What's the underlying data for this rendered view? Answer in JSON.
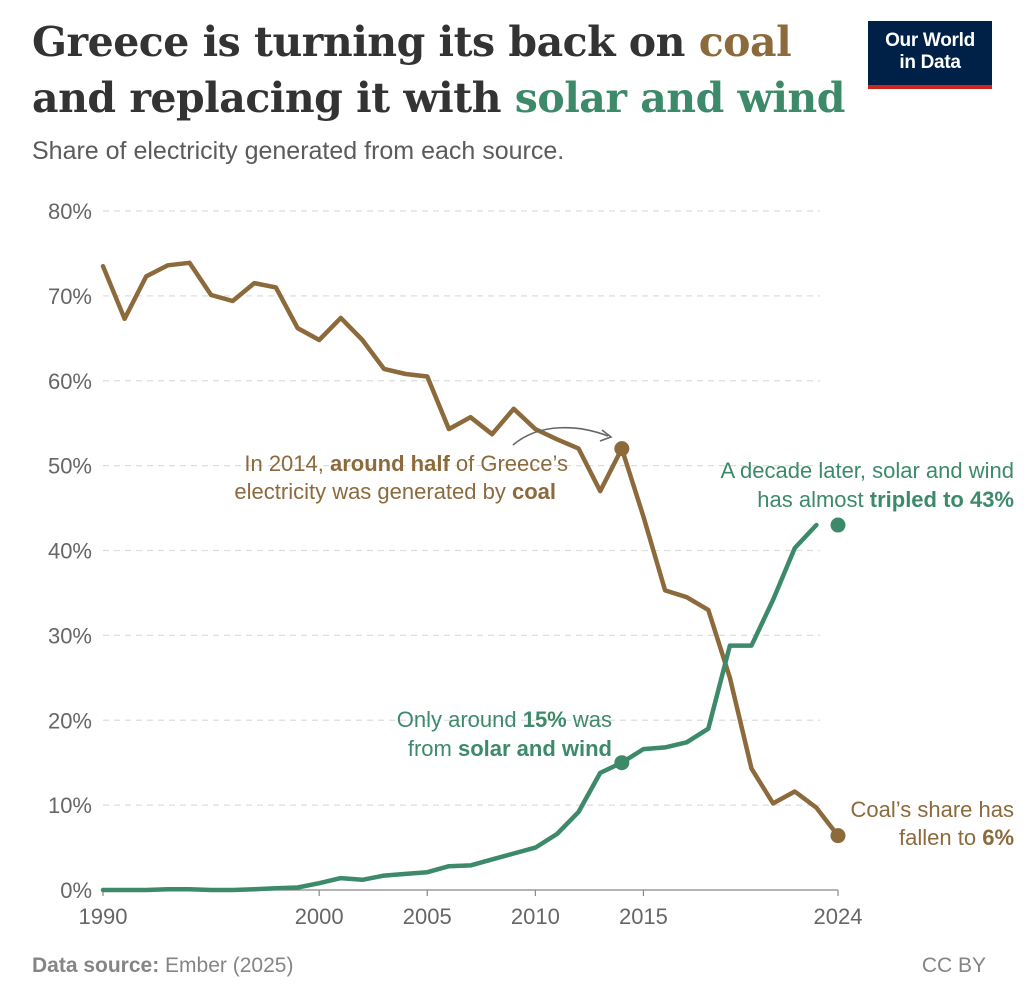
{
  "header": {
    "title_line1_pre": "Greece is turning its back on ",
    "title_line1_hl": "coal",
    "title_line2_pre": "and replacing it with ",
    "title_line2_hl": "solar and wind",
    "subtitle": "Share of electricity generated from each source.",
    "logo_line1": "Our World",
    "logo_line2": "in Data"
  },
  "colors": {
    "coal": "#8c6a3c",
    "solar_wind": "#3d8a6a",
    "title_text": "#333333",
    "grid": "#dddddd",
    "axis_text": "#666666",
    "logo_bg": "#002147",
    "logo_accent": "#ce261e"
  },
  "chart_data": {
    "type": "line",
    "xlim": [
      1990,
      2024
    ],
    "ylim": [
      0,
      80
    ],
    "y_ticks": [
      0,
      10,
      20,
      30,
      40,
      50,
      60,
      70,
      80
    ],
    "y_tick_labels": [
      "0%",
      "10%",
      "20%",
      "30%",
      "40%",
      "50%",
      "60%",
      "70%",
      "80%"
    ],
    "x_ticks": [
      1990,
      2000,
      2005,
      2010,
      2015,
      2024
    ],
    "x_tick_labels": [
      "1990",
      "2000",
      "2005",
      "2010",
      "2015",
      "2024"
    ],
    "grid": "horizontal-dashed",
    "series": [
      {
        "key": "coal",
        "x": [
          1990,
          1991,
          1992,
          1993,
          1994,
          1995,
          1996,
          1997,
          1998,
          1999,
          2000,
          2001,
          2002,
          2003,
          2004,
          2005,
          2006,
          2007,
          2008,
          2009,
          2010,
          2011,
          2012,
          2013,
          2014,
          2015,
          2016,
          2017,
          2018,
          2019,
          2020,
          2021,
          2022,
          2023,
          2024
        ],
        "values": [
          73.5,
          67.3,
          72.3,
          73.6,
          73.9,
          70.1,
          69.4,
          71.5,
          71.0,
          66.2,
          64.8,
          67.4,
          64.8,
          61.4,
          60.8,
          60.5,
          54.3,
          55.7,
          53.7,
          56.7,
          54.3,
          53.1,
          52.0,
          47.0,
          52.0,
          44.0,
          35.3,
          34.5,
          33.0,
          25.0,
          14.3,
          10.2,
          11.6,
          9.7,
          6.4
        ]
      },
      {
        "key": "solar_wind",
        "x": [
          1990,
          1991,
          1992,
          1993,
          1994,
          1995,
          1996,
          1997,
          1998,
          1999,
          2000,
          2001,
          2002,
          2003,
          2004,
          2005,
          2006,
          2007,
          2008,
          2009,
          2010,
          2011,
          2012,
          2013,
          2014,
          2015,
          2016,
          2017,
          2018,
          2019,
          2020,
          2021,
          2022,
          2023,
          2024
        ],
        "values": [
          0.0,
          0.0,
          0.0,
          0.1,
          0.1,
          0.0,
          0.0,
          0.1,
          0.2,
          0.3,
          0.8,
          1.4,
          1.2,
          1.7,
          1.9,
          2.1,
          2.8,
          2.9,
          3.6,
          4.3,
          5.0,
          6.6,
          9.2,
          13.8,
          15.0,
          16.6,
          16.8,
          17.4,
          19.0,
          28.8,
          28.8,
          34.2,
          40.3,
          43.0,
          null
        ]
      }
    ],
    "highlight_points": [
      {
        "series": "coal",
        "x": 2014,
        "y": 52.0
      },
      {
        "series": "coal",
        "x": 2024,
        "y": 6.4
      },
      {
        "series": "solar_wind",
        "x": 2014,
        "y": 15.0
      },
      {
        "series": "solar_wind",
        "x": 2024,
        "y": 43.0
      }
    ],
    "annotations": {
      "coal_2014_line1_a": "In 2014, ",
      "coal_2014_line1_b": "around half",
      "coal_2014_line1_c": " of Greece’s",
      "coal_2014_line2_a": "electricity was generated by ",
      "coal_2014_line2_b": "coal",
      "sw_2014_line1_a": "Only around ",
      "sw_2014_line1_b": "15%",
      "sw_2014_line1_c": " was",
      "sw_2014_line2_a": "from ",
      "sw_2014_line2_b": "solar and wind",
      "sw_2024_line1": "A decade later, solar and wind",
      "sw_2024_line2_a": "has almost ",
      "sw_2024_line2_b": "tripled to 43%",
      "coal_2024_line1": "Coal’s share has",
      "coal_2024_line2_a": "fallen to ",
      "coal_2024_line2_b": "6%"
    }
  },
  "footer": {
    "source_label": "Data source:",
    "source_value": " Ember (2025)",
    "license": "CC BY"
  }
}
